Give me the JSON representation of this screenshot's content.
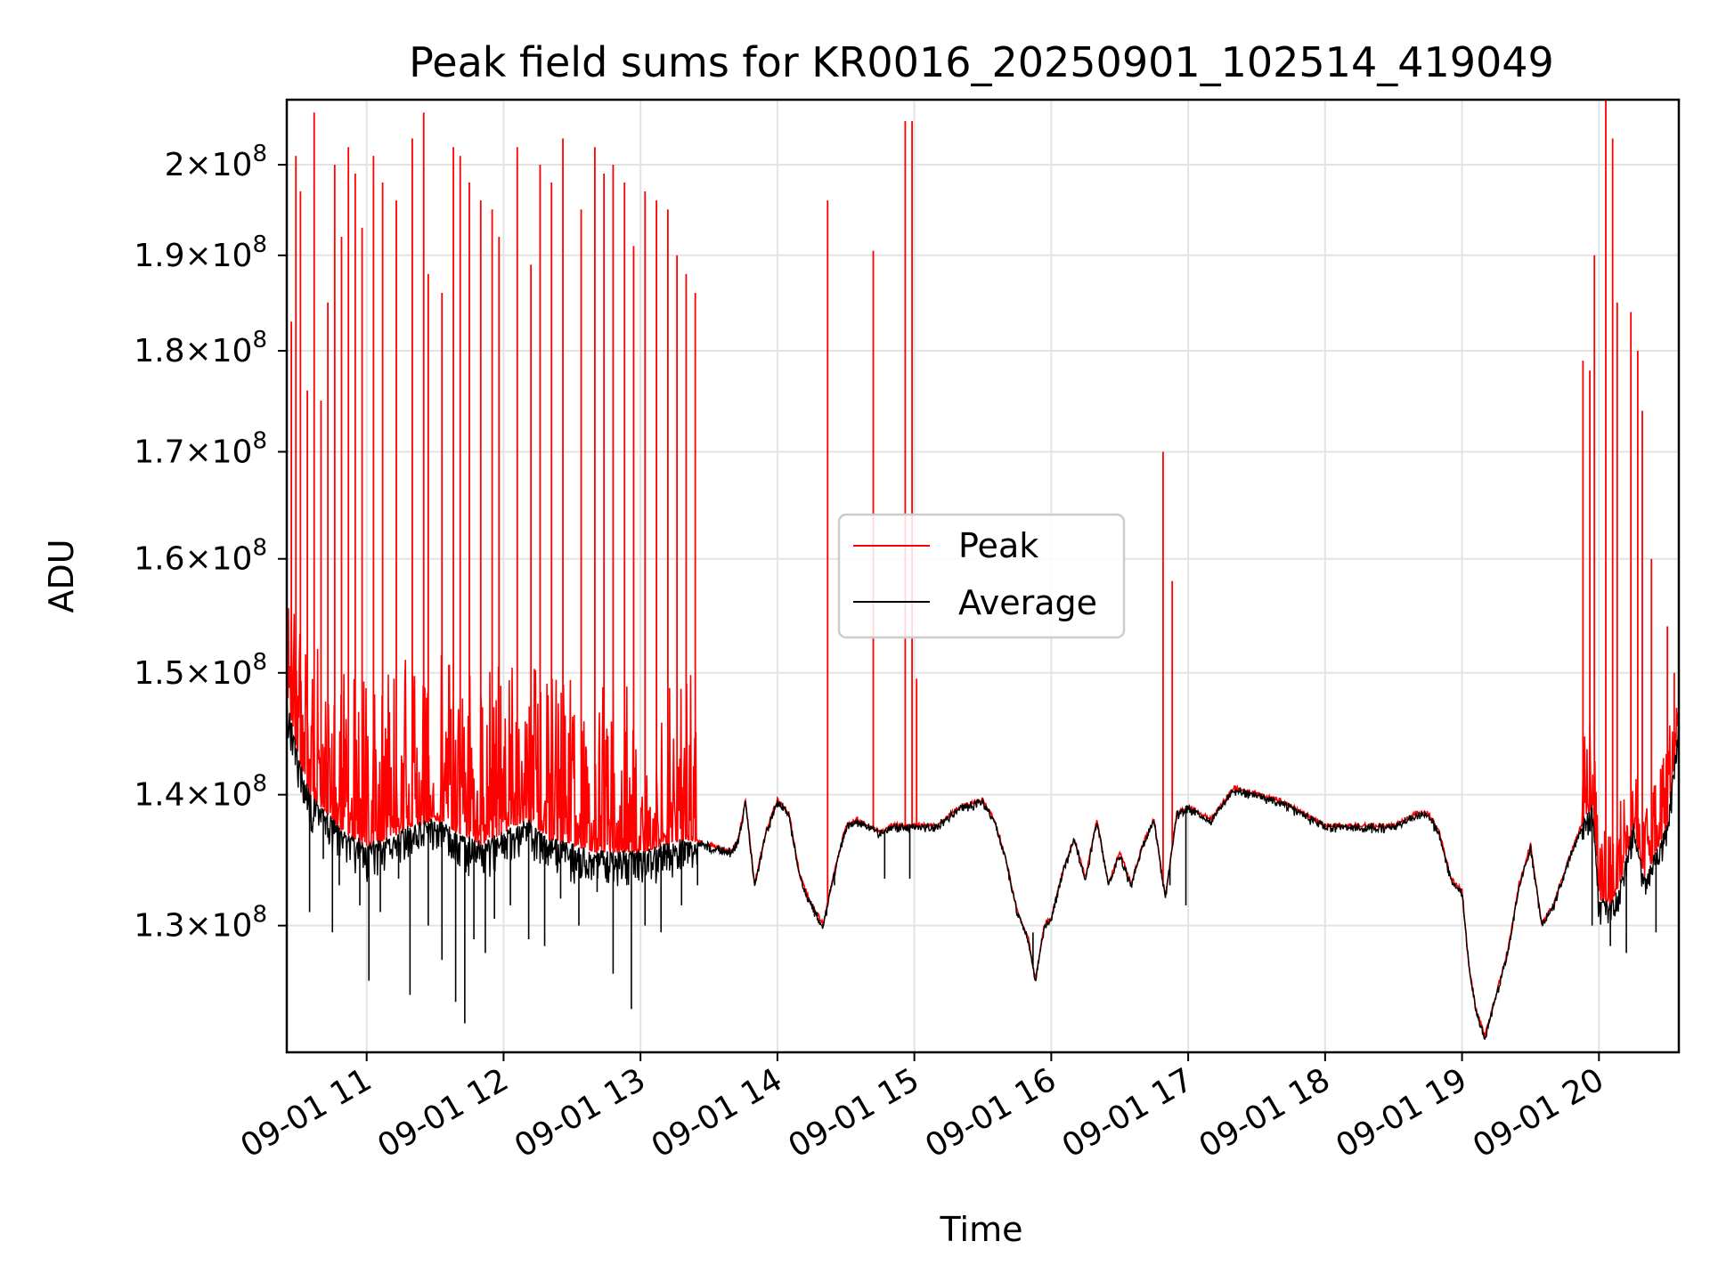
{
  "chart_data": {
    "type": "line",
    "title": "Peak field sums for KR0016_20250901_102514_419049",
    "xlabel": "Time",
    "ylabel": "ADU",
    "yscale": "log",
    "xlim": [
      "2025-09-01 10:25",
      "2025-09-01 20:35"
    ],
    "ylim": [
      121000000,
      207500000
    ],
    "x_ticks": [
      "09-01 11",
      "09-01 12",
      "09-01 13",
      "09-01 14",
      "09-01 15",
      "09-01 16",
      "09-01 17",
      "09-01 18",
      "09-01 19",
      "09-01 20"
    ],
    "x_tick_times": [
      "2025-09-01 11:00",
      "2025-09-01 12:00",
      "2025-09-01 13:00",
      "2025-09-01 14:00",
      "2025-09-01 15:00",
      "2025-09-01 16:00",
      "2025-09-01 17:00",
      "2025-09-01 18:00",
      "2025-09-01 19:00",
      "2025-09-01 20:00"
    ],
    "y_ticks": [
      {
        "value": 130000000,
        "mant": "1.3",
        "exp": "8"
      },
      {
        "value": 140000000,
        "mant": "1.4",
        "exp": "8"
      },
      {
        "value": 150000000,
        "mant": "1.5",
        "exp": "8"
      },
      {
        "value": 160000000,
        "mant": "1.6",
        "exp": "8"
      },
      {
        "value": 170000000,
        "mant": "1.7",
        "exp": "8"
      },
      {
        "value": 180000000,
        "mant": "1.8",
        "exp": "8"
      },
      {
        "value": 190000000,
        "mant": "1.9",
        "exp": "8"
      },
      {
        "value": 200000000,
        "mant": "2",
        "exp": "8"
      }
    ],
    "grid": true,
    "legend_position": "center-right",
    "series": [
      {
        "name": "Peak",
        "color": "#ff0000"
      },
      {
        "name": "Average",
        "color": "#000000"
      }
    ],
    "baseline": {
      "x": [
        "10:25",
        "10:30",
        "10:35",
        "10:40",
        "10:45",
        "10:50",
        "10:55",
        "11:00",
        "11:10",
        "11:20",
        "11:30",
        "11:40",
        "11:50",
        "12:00",
        "12:10",
        "12:20",
        "12:30",
        "12:40",
        "12:50",
        "13:00",
        "13:10",
        "13:20",
        "13:30",
        "13:40",
        "13:43",
        "13:46",
        "13:50",
        "13:55",
        "14:00",
        "14:05",
        "14:10",
        "14:15",
        "14:20",
        "14:25",
        "14:30",
        "14:35",
        "14:40",
        "14:45",
        "14:50",
        "14:55",
        "15:00",
        "15:10",
        "15:20",
        "15:30",
        "15:35",
        "15:40",
        "15:45",
        "15:50",
        "15:53",
        "15:57",
        "16:00",
        "16:05",
        "16:10",
        "16:15",
        "16:20",
        "16:25",
        "16:30",
        "16:35",
        "16:40",
        "16:45",
        "16:50",
        "16:55",
        "17:00",
        "17:10",
        "17:20",
        "17:30",
        "17:40",
        "17:50",
        "18:00",
        "18:10",
        "18:20",
        "18:30",
        "18:40",
        "18:45",
        "18:50",
        "18:55",
        "19:00",
        "19:03",
        "19:06",
        "19:10",
        "19:15",
        "19:20",
        "19:25",
        "19:30",
        "19:35",
        "19:40",
        "19:45",
        "19:50",
        "19:55",
        "19:57",
        "20:00",
        "20:05",
        "20:10",
        "20:15",
        "20:20",
        "20:25",
        "20:30",
        "20:35"
      ],
      "y": [
        148000000,
        143000000,
        140000000,
        139000000,
        138000000,
        137000000,
        136500000,
        136000000,
        136500000,
        137500000,
        138000000,
        137000000,
        136000000,
        137000000,
        138000000,
        136500000,
        136000000,
        135500000,
        135500000,
        135500000,
        136000000,
        136500000,
        136000000,
        135500000,
        136500000,
        139500000,
        133000000,
        137000000,
        139500000,
        138500000,
        133500000,
        131500000,
        130000000,
        134000000,
        137500000,
        138000000,
        137500000,
        137000000,
        137500000,
        137500000,
        137500000,
        137500000,
        139000000,
        139500000,
        138000000,
        135000000,
        131000000,
        129000000,
        126000000,
        130000000,
        130500000,
        134000000,
        136500000,
        133500000,
        138000000,
        133000000,
        135500000,
        133000000,
        136000000,
        138000000,
        132000000,
        138500000,
        139000000,
        138000000,
        140500000,
        140000000,
        139500000,
        138500000,
        137500000,
        137500000,
        137500000,
        137500000,
        138500000,
        138500000,
        137000000,
        133500000,
        132500000,
        127000000,
        124000000,
        122000000,
        125000000,
        128000000,
        133000000,
        136000000,
        130000000,
        131500000,
        134000000,
        136500000,
        138500000,
        139000000,
        132000000,
        131500000,
        133500000,
        137500000,
        133500000,
        135500000,
        137500000,
        146000000
      ]
    },
    "peak_spikes": {
      "x": [
        "10:27",
        "10:29",
        "10:31",
        "10:34",
        "10:37",
        "10:40",
        "10:43",
        "10:46",
        "10:49",
        "10:52",
        "10:55",
        "10:58",
        "11:03",
        "11:07",
        "11:13",
        "11:20",
        "11:25",
        "11:27",
        "11:33",
        "11:38",
        "11:41",
        "11:45",
        "11:50",
        "11:55",
        "11:58",
        "12:06",
        "12:12",
        "12:16",
        "12:21",
        "12:26",
        "12:34",
        "12:40",
        "12:44",
        "12:48",
        "12:53",
        "12:57",
        "13:02",
        "13:07",
        "13:12",
        "13:16",
        "13:20",
        "13:24",
        "14:22",
        "14:42",
        "14:56",
        "14:59",
        "15:01",
        "16:49",
        "16:53",
        "19:53",
        "19:56",
        "19:58",
        "20:03",
        "20:06",
        "20:08",
        "20:14",
        "20:17",
        "20:19",
        "20:23",
        "20:30",
        "20:33"
      ],
      "y": [
        183000000,
        201000000,
        197000000,
        176000000,
        206000000,
        175000000,
        185000000,
        200000000,
        192000000,
        202000000,
        199000000,
        193000000,
        201000000,
        198000000,
        196000000,
        203000000,
        206000000,
        188000000,
        186000000,
        202000000,
        201000000,
        198000000,
        196000000,
        195000000,
        192000000,
        202000000,
        189000000,
        200000000,
        198000000,
        203000000,
        195000000,
        202000000,
        199000000,
        200000000,
        198000000,
        191000000,
        197000000,
        196000000,
        195000000,
        190000000,
        188000000,
        186000000,
        196000000,
        190500000,
        205000000,
        205000000,
        149500000,
        170000000,
        158000000,
        179000000,
        178000000,
        190000000,
        207500000,
        203000000,
        185000000,
        184000000,
        180000000,
        174000000,
        160000000,
        154000000,
        150000000
      ]
    },
    "average_dips": {
      "x": [
        "10:35",
        "10:41",
        "10:45",
        "10:48",
        "10:57",
        "11:01",
        "11:06",
        "11:14",
        "11:19",
        "11:27",
        "11:33",
        "11:39",
        "11:43",
        "11:47",
        "11:52",
        "11:56",
        "12:03",
        "12:11",
        "12:18",
        "12:25",
        "12:33",
        "12:41",
        "12:48",
        "12:56",
        "13:02",
        "13:09",
        "13:18",
        "13:25",
        "14:25",
        "14:47",
        "14:58",
        "15:52",
        "16:52",
        "16:59",
        "19:57",
        "20:05",
        "20:12",
        "20:25"
      ],
      "y": [
        131000000,
        135000000,
        129500000,
        133000000,
        131500000,
        126000000,
        131000000,
        133500000,
        125000000,
        130000000,
        127500000,
        124500000,
        123000000,
        129000000,
        128000000,
        130500000,
        131500000,
        129000000,
        128500000,
        132000000,
        130000000,
        132500000,
        126500000,
        124000000,
        130000000,
        129500000,
        131500000,
        133000000,
        133000000,
        133500000,
        133500000,
        129500000,
        133000000,
        131500000,
        130000000,
        128500000,
        128000000,
        129500000
      ]
    }
  }
}
